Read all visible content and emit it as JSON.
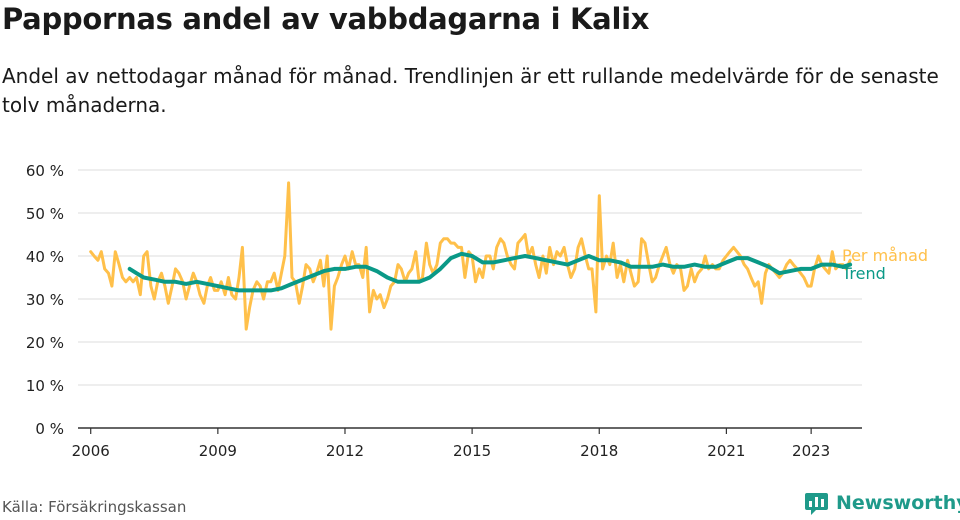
{
  "header": {
    "title": "Pappornas andel av vabbdagarna i Kalix",
    "subtitle": "Andel av nettodagar månad för månad. Trendlinjen är ett rullande medelvärde för de senaste tolv månaderna."
  },
  "footer": {
    "source": "Källa: Försäkringskassan",
    "brand": "Newsworthy"
  },
  "colors": {
    "per_month": "#ffc04a",
    "trend": "#0a9987",
    "grid": "#dddddd",
    "axis": "#333333",
    "brand": "#1f9a8a"
  },
  "chart_data": {
    "type": "line",
    "title": "Pappornas andel av vabbdagarna i Kalix",
    "ylim": [
      0,
      60
    ],
    "xlim": [
      2005.7,
      2024.2
    ],
    "y_ticks": [
      {
        "value": 0,
        "label": "0 %"
      },
      {
        "value": 10,
        "label": "10 %"
      },
      {
        "value": 20,
        "label": "20 %"
      },
      {
        "value": 30,
        "label": "30 %"
      },
      {
        "value": 40,
        "label": "40 %"
      },
      {
        "value": 50,
        "label": "50 %"
      },
      {
        "value": 60,
        "label": "60 %"
      }
    ],
    "x_ticks": [
      {
        "value": 2006,
        "label": "2006"
      },
      {
        "value": 2009,
        "label": "2009"
      },
      {
        "value": 2012,
        "label": "2012"
      },
      {
        "value": 2015,
        "label": "2015"
      },
      {
        "value": 2018,
        "label": "2018"
      },
      {
        "value": 2021,
        "label": "2021"
      },
      {
        "value": 2023,
        "label": "2023"
      }
    ],
    "grid": true,
    "series": [
      {
        "name": "Per månad",
        "color": "#ffc04a",
        "points": [
          [
            2006.0,
            41
          ],
          [
            2006.08,
            40
          ],
          [
            2006.17,
            39
          ],
          [
            2006.25,
            41
          ],
          [
            2006.33,
            37
          ],
          [
            2006.42,
            36
          ],
          [
            2006.5,
            33
          ],
          [
            2006.58,
            41
          ],
          [
            2006.67,
            38
          ],
          [
            2006.75,
            35
          ],
          [
            2006.83,
            34
          ],
          [
            2006.92,
            35
          ],
          [
            2007.0,
            34
          ],
          [
            2007.08,
            35
          ],
          [
            2007.17,
            31
          ],
          [
            2007.25,
            40
          ],
          [
            2007.33,
            41
          ],
          [
            2007.42,
            33
          ],
          [
            2007.5,
            30
          ],
          [
            2007.58,
            34
          ],
          [
            2007.67,
            36
          ],
          [
            2007.75,
            33
          ],
          [
            2007.83,
            29
          ],
          [
            2007.92,
            33
          ],
          [
            2008.0,
            37
          ],
          [
            2008.08,
            36
          ],
          [
            2008.17,
            34
          ],
          [
            2008.25,
            30
          ],
          [
            2008.33,
            33
          ],
          [
            2008.42,
            36
          ],
          [
            2008.5,
            34
          ],
          [
            2008.58,
            31
          ],
          [
            2008.67,
            29
          ],
          [
            2008.75,
            33
          ],
          [
            2008.83,
            35
          ],
          [
            2008.92,
            32
          ],
          [
            2009.0,
            32
          ],
          [
            2009.08,
            34
          ],
          [
            2009.17,
            31
          ],
          [
            2009.25,
            35
          ],
          [
            2009.33,
            31
          ],
          [
            2009.42,
            30
          ],
          [
            2009.5,
            35
          ],
          [
            2009.58,
            42
          ],
          [
            2009.67,
            23
          ],
          [
            2009.75,
            28
          ],
          [
            2009.83,
            32
          ],
          [
            2009.92,
            34
          ],
          [
            2010.0,
            33
          ],
          [
            2010.08,
            30
          ],
          [
            2010.17,
            34
          ],
          [
            2010.25,
            34
          ],
          [
            2010.33,
            36
          ],
          [
            2010.42,
            32
          ],
          [
            2010.5,
            36
          ],
          [
            2010.58,
            40
          ],
          [
            2010.67,
            57
          ],
          [
            2010.75,
            35
          ],
          [
            2010.83,
            34
          ],
          [
            2010.92,
            29
          ],
          [
            2011.0,
            33
          ],
          [
            2011.08,
            38
          ],
          [
            2011.17,
            37
          ],
          [
            2011.25,
            34
          ],
          [
            2011.33,
            36
          ],
          [
            2011.42,
            39
          ],
          [
            2011.5,
            33
          ],
          [
            2011.58,
            40
          ],
          [
            2011.67,
            23
          ],
          [
            2011.75,
            33
          ],
          [
            2011.83,
            35
          ],
          [
            2011.92,
            38
          ],
          [
            2012.0,
            40
          ],
          [
            2012.08,
            37
          ],
          [
            2012.17,
            41
          ],
          [
            2012.25,
            38
          ],
          [
            2012.33,
            38
          ],
          [
            2012.42,
            35
          ],
          [
            2012.5,
            42
          ],
          [
            2012.58,
            27
          ],
          [
            2012.67,
            32
          ],
          [
            2012.75,
            30
          ],
          [
            2012.83,
            31
          ],
          [
            2012.92,
            28
          ],
          [
            2013.0,
            30
          ],
          [
            2013.08,
            33
          ],
          [
            2013.17,
            34
          ],
          [
            2013.25,
            38
          ],
          [
            2013.33,
            37
          ],
          [
            2013.42,
            34
          ],
          [
            2013.5,
            36
          ],
          [
            2013.58,
            37
          ],
          [
            2013.67,
            41
          ],
          [
            2013.75,
            34
          ],
          [
            2013.83,
            35
          ],
          [
            2013.92,
            43
          ],
          [
            2014.0,
            38
          ],
          [
            2014.08,
            36
          ],
          [
            2014.17,
            38
          ],
          [
            2014.25,
            43
          ],
          [
            2014.33,
            44
          ],
          [
            2014.42,
            44
          ],
          [
            2014.5,
            43
          ],
          [
            2014.58,
            43
          ],
          [
            2014.67,
            42
          ],
          [
            2014.75,
            42
          ],
          [
            2014.83,
            35
          ],
          [
            2014.92,
            41
          ],
          [
            2015.0,
            40
          ],
          [
            2015.08,
            34
          ],
          [
            2015.17,
            37
          ],
          [
            2015.25,
            35
          ],
          [
            2015.33,
            40
          ],
          [
            2015.42,
            40
          ],
          [
            2015.5,
            37
          ],
          [
            2015.58,
            42
          ],
          [
            2015.67,
            44
          ],
          [
            2015.75,
            43
          ],
          [
            2015.83,
            40
          ],
          [
            2015.92,
            38
          ],
          [
            2016.0,
            37
          ],
          [
            2016.08,
            43
          ],
          [
            2016.17,
            44
          ],
          [
            2016.25,
            45
          ],
          [
            2016.33,
            40
          ],
          [
            2016.42,
            42
          ],
          [
            2016.5,
            38
          ],
          [
            2016.58,
            35
          ],
          [
            2016.67,
            40
          ],
          [
            2016.75,
            36
          ],
          [
            2016.83,
            42
          ],
          [
            2016.92,
            38
          ],
          [
            2017.0,
            41
          ],
          [
            2017.08,
            40
          ],
          [
            2017.17,
            42
          ],
          [
            2017.25,
            38
          ],
          [
            2017.33,
            35
          ],
          [
            2017.42,
            37
          ],
          [
            2017.5,
            42
          ],
          [
            2017.58,
            44
          ],
          [
            2017.67,
            40
          ],
          [
            2017.75,
            37
          ],
          [
            2017.83,
            37
          ],
          [
            2017.92,
            27
          ],
          [
            2018.0,
            54
          ],
          [
            2018.08,
            37
          ],
          [
            2018.17,
            40
          ],
          [
            2018.25,
            38
          ],
          [
            2018.33,
            43
          ],
          [
            2018.42,
            35
          ],
          [
            2018.5,
            38
          ],
          [
            2018.58,
            34
          ],
          [
            2018.67,
            39
          ],
          [
            2018.75,
            36
          ],
          [
            2018.83,
            33
          ],
          [
            2018.92,
            34
          ],
          [
            2019.0,
            44
          ],
          [
            2019.08,
            43
          ],
          [
            2019.17,
            38
          ],
          [
            2019.25,
            34
          ],
          [
            2019.33,
            35
          ],
          [
            2019.42,
            38
          ],
          [
            2019.5,
            40
          ],
          [
            2019.58,
            42
          ],
          [
            2019.67,
            38
          ],
          [
            2019.75,
            36
          ],
          [
            2019.83,
            38
          ],
          [
            2019.92,
            37
          ],
          [
            2020.0,
            32
          ],
          [
            2020.08,
            33
          ],
          [
            2020.17,
            37
          ],
          [
            2020.25,
            34
          ],
          [
            2020.33,
            36
          ],
          [
            2020.42,
            37
          ],
          [
            2020.5,
            40
          ],
          [
            2020.58,
            37
          ],
          [
            2020.67,
            38
          ],
          [
            2020.75,
            37
          ],
          [
            2020.83,
            37
          ],
          [
            2020.92,
            39
          ],
          [
            2021.0,
            40
          ],
          [
            2021.08,
            41
          ],
          [
            2021.17,
            42
          ],
          [
            2021.25,
            41
          ],
          [
            2021.33,
            40
          ],
          [
            2021.42,
            38
          ],
          [
            2021.5,
            37
          ],
          [
            2021.58,
            35
          ],
          [
            2021.67,
            33
          ],
          [
            2021.75,
            34
          ],
          [
            2021.83,
            29
          ],
          [
            2021.92,
            36
          ],
          [
            2022.0,
            38
          ],
          [
            2022.08,
            37
          ],
          [
            2022.17,
            36
          ],
          [
            2022.25,
            35
          ],
          [
            2022.33,
            36
          ],
          [
            2022.42,
            38
          ],
          [
            2022.5,
            39
          ],
          [
            2022.58,
            38
          ],
          [
            2022.67,
            37
          ],
          [
            2022.75,
            36
          ],
          [
            2022.83,
            35
          ],
          [
            2022.92,
            33
          ],
          [
            2023.0,
            33
          ],
          [
            2023.08,
            37
          ],
          [
            2023.17,
            40
          ],
          [
            2023.25,
            38
          ],
          [
            2023.33,
            37
          ],
          [
            2023.42,
            36
          ],
          [
            2023.5,
            41
          ],
          [
            2023.58,
            37
          ],
          [
            2023.67,
            38
          ],
          [
            2023.75,
            38
          ],
          [
            2023.83,
            37
          ],
          [
            2023.92,
            39
          ]
        ]
      },
      {
        "name": "Trend",
        "color": "#0a9987",
        "points": [
          [
            2006.92,
            37
          ],
          [
            2007.08,
            36
          ],
          [
            2007.25,
            35
          ],
          [
            2007.5,
            34.5
          ],
          [
            2007.75,
            34
          ],
          [
            2008.0,
            34
          ],
          [
            2008.25,
            33.5
          ],
          [
            2008.5,
            34
          ],
          [
            2008.75,
            33.5
          ],
          [
            2009.0,
            33
          ],
          [
            2009.25,
            32.5
          ],
          [
            2009.5,
            32
          ],
          [
            2009.75,
            32
          ],
          [
            2010.0,
            32
          ],
          [
            2010.25,
            32
          ],
          [
            2010.5,
            32.5
          ],
          [
            2010.75,
            33.5
          ],
          [
            2011.0,
            34.5
          ],
          [
            2011.25,
            35.5
          ],
          [
            2011.5,
            36.5
          ],
          [
            2011.75,
            37
          ],
          [
            2012.0,
            37
          ],
          [
            2012.25,
            37.5
          ],
          [
            2012.5,
            37.5
          ],
          [
            2012.75,
            36.5
          ],
          [
            2013.0,
            35
          ],
          [
            2013.25,
            34
          ],
          [
            2013.5,
            34
          ],
          [
            2013.75,
            34
          ],
          [
            2014.0,
            35
          ],
          [
            2014.25,
            37
          ],
          [
            2014.5,
            39.5
          ],
          [
            2014.75,
            40.5
          ],
          [
            2015.0,
            40
          ],
          [
            2015.25,
            38.5
          ],
          [
            2015.5,
            38.5
          ],
          [
            2015.75,
            39
          ],
          [
            2016.0,
            39.5
          ],
          [
            2016.25,
            40
          ],
          [
            2016.5,
            39.5
          ],
          [
            2016.75,
            39
          ],
          [
            2017.0,
            38.5
          ],
          [
            2017.25,
            38
          ],
          [
            2017.5,
            39
          ],
          [
            2017.75,
            40
          ],
          [
            2018.0,
            39
          ],
          [
            2018.25,
            39
          ],
          [
            2018.5,
            38.5
          ],
          [
            2018.75,
            37.5
          ],
          [
            2019.0,
            37.5
          ],
          [
            2019.25,
            37.5
          ],
          [
            2019.5,
            38
          ],
          [
            2019.75,
            37.5
          ],
          [
            2020.0,
            37.5
          ],
          [
            2020.25,
            38
          ],
          [
            2020.5,
            37.5
          ],
          [
            2020.75,
            37.5
          ],
          [
            2021.0,
            38.5
          ],
          [
            2021.25,
            39.5
          ],
          [
            2021.5,
            39.5
          ],
          [
            2021.75,
            38.5
          ],
          [
            2022.0,
            37.5
          ],
          [
            2022.25,
            36
          ],
          [
            2022.5,
            36.5
          ],
          [
            2022.75,
            37
          ],
          [
            2023.0,
            37
          ],
          [
            2023.25,
            38
          ],
          [
            2023.5,
            38
          ],
          [
            2023.75,
            37.5
          ],
          [
            2023.92,
            38
          ]
        ]
      }
    ]
  }
}
